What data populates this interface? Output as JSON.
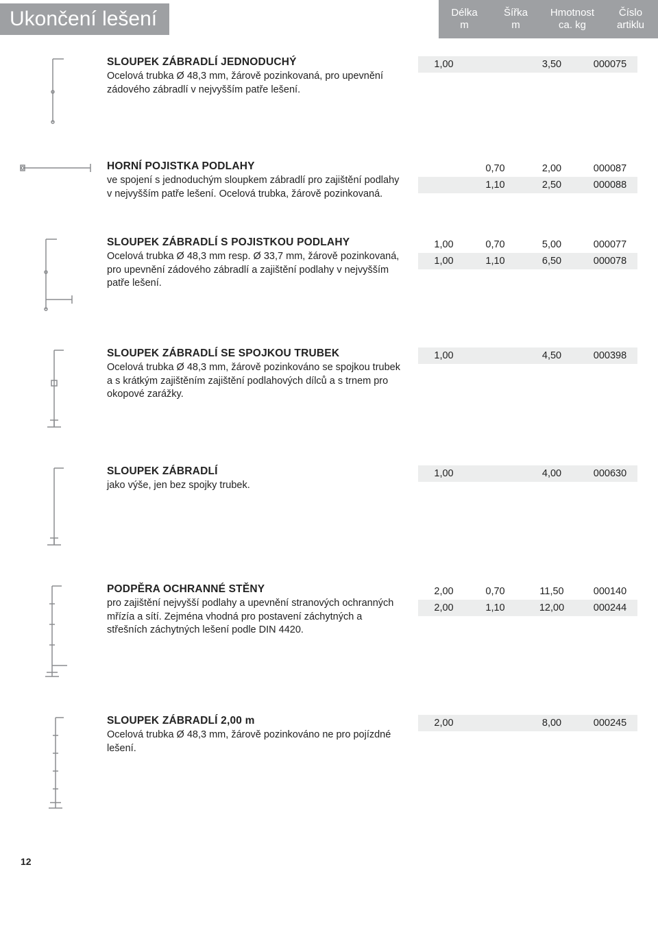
{
  "header": {
    "title": "Ukončení lešení",
    "columns": [
      {
        "line1": "Délka",
        "line2": "m"
      },
      {
        "line1": "Šířka",
        "line2": "m"
      },
      {
        "line1": "Hmotnost",
        "line2": "ca. kg"
      },
      {
        "line1": "Číslo",
        "line2": "artiklu"
      }
    ]
  },
  "sections": [
    {
      "title": "SLOUPEK ZÁBRADLÍ JEDNODUCHÝ",
      "body": "Ocelová trubka Ø 48,3 mm, žárově pozinkovaná, pro upevnění zádového zábradlí v nejvyšším patře lešení.",
      "rows": [
        {
          "shade": true,
          "delka": "1,00",
          "sirka": "",
          "hmot": "3,50",
          "art": "000075"
        }
      ],
      "svg": "post1"
    },
    {
      "title": "HORNÍ POJISTKA PODLAHY",
      "body": "ve spojení s jednoduchým sloupkem zábradlí pro zajištění podlahy v nejvyšším patře lešení. Ocelová trubka, žárově pozinkovaná.",
      "rows": [
        {
          "shade": false,
          "delka": "",
          "sirka": "0,70",
          "hmot": "2,00",
          "art": "000087"
        },
        {
          "shade": true,
          "delka": "",
          "sirka": "1,10",
          "hmot": "2,50",
          "art": "000088"
        }
      ],
      "svg": "bar1"
    },
    {
      "title": "SLOUPEK ZÁBRADLÍ S POJISTKOU PODLAHY",
      "body": "Ocelová trubka Ø 48,3 mm resp. Ø 33,7 mm, žárově pozinkovaná, pro upevnění zádového zábradlí a zajištění podlahy v nejvyšším patře lešení.",
      "rows": [
        {
          "shade": false,
          "delka": "1,00",
          "sirka": "0,70",
          "hmot": "5,00",
          "art": "000077"
        },
        {
          "shade": true,
          "delka": "1,00",
          "sirka": "1,10",
          "hmot": "6,50",
          "art": "000078"
        }
      ],
      "svg": "post2"
    },
    {
      "title": "SLOUPEK ZÁBRADLÍ SE SPOJKOU TRUBEK",
      "body": "Ocelová trubka Ø 48,3 mm, žárově pozinkováno se spojkou trubek a s krátkým zajištěním zajištění podlahových dílců a s trnem pro okopové zarážky.",
      "rows": [
        {
          "shade": true,
          "delka": "1,00",
          "sirka": "",
          "hmot": "4,50",
          "art": "000398"
        }
      ],
      "svg": "post3"
    },
    {
      "title": "SLOUPEK ZÁBRADLÍ",
      "body": "jako výše, jen bez spojky trubek.",
      "rows": [
        {
          "shade": true,
          "delka": "1,00",
          "sirka": "",
          "hmot": "4,00",
          "art": "000630"
        }
      ],
      "svg": "post3b"
    },
    {
      "title": "PODPĚRA OCHRANNÉ STĚNY",
      "body": "pro zajištění nejvyšší podlahy a upevnění stranových ochranných mřízía a sítí. Zejména vhodná pro postavení záchytných a střešních záchytných lešení podle DIN 4420.",
      "rows": [
        {
          "shade": false,
          "delka": "2,00",
          "sirka": "0,70",
          "hmot": "11,50",
          "art": "000140"
        },
        {
          "shade": true,
          "delka": "2,00",
          "sirka": "1,10",
          "hmot": "12,00",
          "art": "000244"
        }
      ],
      "svg": "post4"
    },
    {
      "title": "SLOUPEK ZÁBRADLÍ 2,00 m",
      "body": "Ocelová trubka Ø 48,3 mm, žárově pozinkováno ne pro pojízdné lešení.",
      "rows": [
        {
          "shade": true,
          "delka": "2,00",
          "sirka": "",
          "hmot": "8,00",
          "art": "000245"
        }
      ],
      "svg": "post5"
    }
  ],
  "pagenum": "12",
  "svg_stroke": "#8a8c8f",
  "thumb_color": "#8a8c8f"
}
